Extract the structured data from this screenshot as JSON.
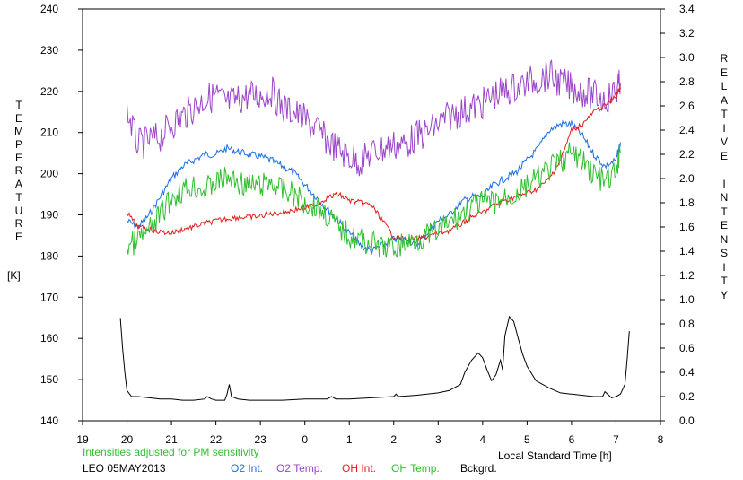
{
  "chart_data": {
    "type": "line",
    "xlabel": "Local Standard Time [h]",
    "x_ticks": [
      "19",
      "20",
      "21",
      "22",
      "23",
      "0",
      "1",
      "2",
      "3",
      "4",
      "5",
      "6",
      "7",
      "8"
    ],
    "xlim": [
      19,
      32
    ],
    "ylabel_left_letters": [
      "T",
      "E",
      "M",
      "P",
      "E",
      "R",
      "A",
      "T",
      "U",
      "R",
      "E"
    ],
    "ylabel_left_unit": "[K]",
    "ylim_left": [
      140,
      240
    ],
    "y_ticks_left": [
      "140",
      "150",
      "160",
      "170",
      "180",
      "190",
      "200",
      "210",
      "220",
      "230",
      "240"
    ],
    "ylabel_right_letters": [
      "R",
      "E",
      "L",
      "A",
      "T",
      "I",
      "V",
      "E",
      "",
      "I",
      "N",
      "T",
      "E",
      "N",
      "S",
      "I",
      "T",
      "Y"
    ],
    "ylim_right": [
      0.0,
      3.4
    ],
    "y_ticks_right": [
      "0.0",
      "0.2",
      "0.4",
      "0.6",
      "0.8",
      "1.0",
      "1.2",
      "1.4",
      "1.6",
      "1.8",
      "2.0",
      "2.2",
      "2.4",
      "2.6",
      "2.8",
      "3.0",
      "3.2",
      "3.4"
    ],
    "annotation": "Intensities adjusted for PM sensitivity",
    "station_date": "LEO 05MAY2013",
    "grid": false,
    "legend_placement": "bottom",
    "series": [
      {
        "name": "O2 Int.",
        "axis": "right",
        "color": "#1e6fe6",
        "x": [
          20.0,
          20.25,
          20.5,
          20.75,
          21.0,
          21.25,
          21.5,
          21.75,
          22.0,
          22.25,
          22.5,
          22.75,
          23.0,
          23.25,
          23.5,
          23.75,
          24.0,
          24.25,
          24.5,
          24.75,
          25.0,
          25.25,
          25.5,
          25.75,
          26.0,
          26.25,
          26.5,
          26.75,
          27.0,
          27.25,
          27.5,
          27.75,
          28.0,
          28.25,
          28.5,
          28.75,
          29.0,
          29.25,
          29.5,
          29.75,
          30.0,
          30.25,
          30.5,
          30.75,
          31.0,
          31.1
        ],
        "y": [
          1.65,
          1.6,
          1.7,
          1.85,
          2.0,
          2.1,
          2.15,
          2.2,
          2.2,
          2.25,
          2.22,
          2.2,
          2.18,
          2.15,
          2.1,
          2.05,
          1.95,
          1.85,
          1.75,
          1.65,
          1.55,
          1.45,
          1.4,
          1.45,
          1.5,
          1.5,
          1.45,
          1.55,
          1.65,
          1.7,
          1.8,
          1.85,
          1.85,
          1.95,
          2.0,
          2.05,
          2.15,
          2.25,
          2.4,
          2.45,
          2.45,
          2.35,
          2.2,
          2.1,
          2.15,
          2.3
        ]
      },
      {
        "name": "O2 Temp.",
        "axis": "left",
        "color": "#9b45c9",
        "x": [
          20.0,
          20.25,
          20.5,
          20.75,
          21.0,
          21.25,
          21.5,
          21.75,
          22.0,
          22.25,
          22.5,
          22.75,
          23.0,
          23.25,
          23.5,
          23.75,
          24.0,
          24.25,
          24.5,
          24.75,
          25.0,
          25.25,
          25.5,
          25.75,
          26.0,
          26.25,
          26.5,
          26.75,
          27.0,
          27.25,
          27.5,
          27.75,
          28.0,
          28.25,
          28.5,
          28.75,
          29.0,
          29.25,
          29.5,
          29.75,
          30.0,
          30.25,
          30.5,
          30.75,
          31.0,
          31.1
        ],
        "y": [
          215,
          207,
          208,
          209,
          212,
          214,
          216,
          218,
          219,
          217,
          218,
          219,
          219,
          220,
          216,
          215,
          213,
          211,
          208,
          206,
          204,
          203,
          205,
          206,
          207,
          207,
          209,
          210,
          212,
          214,
          215,
          216,
          217,
          219,
          220,
          221,
          222,
          223,
          224,
          222,
          221,
          220,
          219,
          218,
          220,
          222
        ]
      },
      {
        "name": "OH Int.",
        "axis": "right",
        "color": "#e0201a",
        "x": [
          20.0,
          20.25,
          20.5,
          20.75,
          21.0,
          21.25,
          21.5,
          21.75,
          22.0,
          22.25,
          22.5,
          22.75,
          23.0,
          23.25,
          23.5,
          23.75,
          24.0,
          24.25,
          24.5,
          24.75,
          25.0,
          25.25,
          25.5,
          25.75,
          26.0,
          26.25,
          26.5,
          26.75,
          27.0,
          27.25,
          27.5,
          27.75,
          28.0,
          28.25,
          28.5,
          28.75,
          29.0,
          29.25,
          29.5,
          29.75,
          30.0,
          30.25,
          30.5,
          30.75,
          31.0,
          31.1
        ],
        "y": [
          1.72,
          1.6,
          1.58,
          1.56,
          1.55,
          1.58,
          1.6,
          1.63,
          1.65,
          1.67,
          1.68,
          1.68,
          1.69,
          1.71,
          1.72,
          1.74,
          1.76,
          1.78,
          1.84,
          1.87,
          1.82,
          1.8,
          1.78,
          1.65,
          1.52,
          1.5,
          1.5,
          1.52,
          1.55,
          1.57,
          1.62,
          1.68,
          1.72,
          1.78,
          1.82,
          1.85,
          1.88,
          1.92,
          2.0,
          2.15,
          2.4,
          2.45,
          2.55,
          2.6,
          2.68,
          2.75
        ]
      },
      {
        "name": "OH Temp.",
        "axis": "left",
        "color": "#2fbf2f",
        "x": [
          20.0,
          20.25,
          20.5,
          20.75,
          21.0,
          21.25,
          21.5,
          21.75,
          22.0,
          22.25,
          22.5,
          22.75,
          23.0,
          23.25,
          23.5,
          23.75,
          24.0,
          24.25,
          24.5,
          24.75,
          25.0,
          25.25,
          25.5,
          25.75,
          26.0,
          26.25,
          26.5,
          26.75,
          27.0,
          27.25,
          27.5,
          27.75,
          28.0,
          28.25,
          28.5,
          28.75,
          29.0,
          29.25,
          29.5,
          29.75,
          30.0,
          30.25,
          30.5,
          30.75,
          31.0,
          31.1
        ],
        "y": [
          182,
          184,
          186,
          190,
          194,
          196,
          197,
          196,
          198,
          199,
          198,
          197,
          197,
          198,
          196,
          195,
          193,
          192,
          190,
          187,
          185,
          184,
          183,
          182,
          182,
          183,
          184,
          185,
          186,
          188,
          190,
          192,
          193,
          193,
          194,
          195,
          197,
          199,
          201,
          203,
          205,
          203,
          200,
          198,
          200,
          205
        ]
      },
      {
        "name": "Bckgrd.",
        "axis": "right",
        "color": "#000000",
        "x": [
          19.85,
          19.9,
          19.95,
          20.0,
          20.1,
          20.25,
          20.5,
          20.75,
          21.0,
          21.25,
          21.5,
          21.75,
          21.8,
          21.9,
          22.0,
          22.2,
          22.25,
          22.3,
          22.35,
          22.5,
          22.75,
          23.0,
          23.5,
          24.0,
          24.5,
          24.6,
          24.7,
          25.0,
          25.5,
          26.0,
          26.05,
          26.1,
          26.5,
          27.0,
          27.25,
          27.5,
          27.6,
          27.75,
          27.9,
          28.0,
          28.1,
          28.2,
          28.3,
          28.4,
          28.45,
          28.5,
          28.6,
          28.7,
          28.8,
          28.9,
          29.0,
          29.2,
          29.5,
          29.75,
          30.0,
          30.25,
          30.5,
          30.7,
          30.75,
          30.9,
          31.0,
          31.1,
          31.2,
          31.25,
          31.3
        ],
        "y": [
          0.85,
          0.6,
          0.4,
          0.25,
          0.2,
          0.2,
          0.19,
          0.18,
          0.18,
          0.17,
          0.17,
          0.18,
          0.2,
          0.18,
          0.17,
          0.17,
          0.22,
          0.3,
          0.2,
          0.18,
          0.17,
          0.17,
          0.17,
          0.18,
          0.18,
          0.2,
          0.18,
          0.18,
          0.19,
          0.2,
          0.22,
          0.2,
          0.21,
          0.23,
          0.25,
          0.3,
          0.4,
          0.5,
          0.56,
          0.52,
          0.42,
          0.33,
          0.38,
          0.5,
          0.42,
          0.7,
          0.86,
          0.82,
          0.68,
          0.55,
          0.45,
          0.33,
          0.27,
          0.23,
          0.22,
          0.21,
          0.2,
          0.2,
          0.24,
          0.19,
          0.2,
          0.22,
          0.3,
          0.5,
          0.74
        ]
      }
    ]
  }
}
